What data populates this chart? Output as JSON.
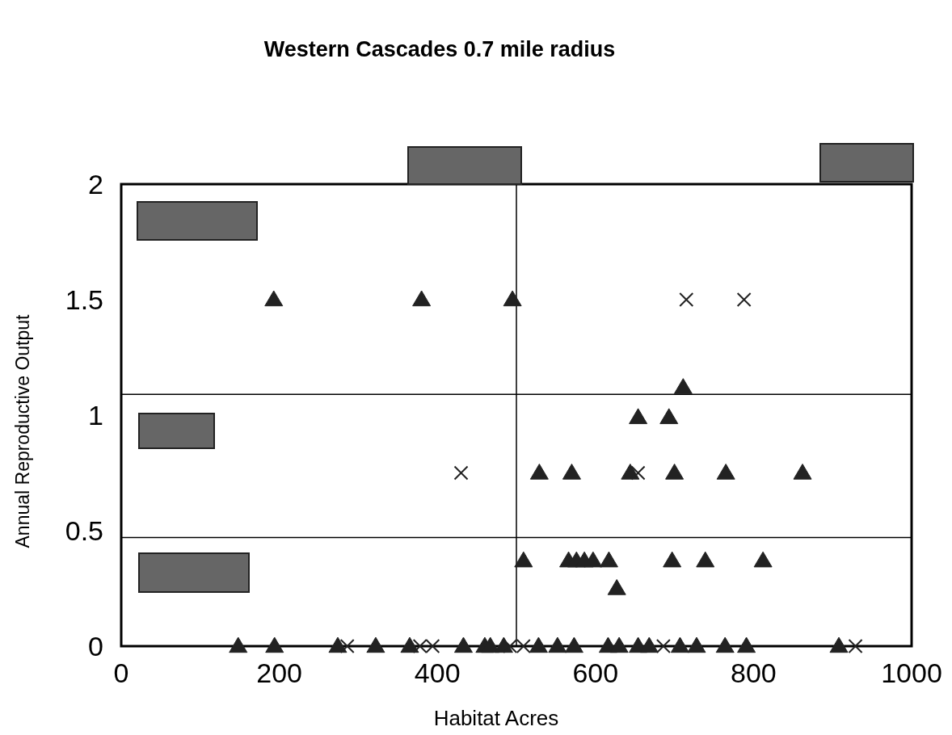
{
  "chart_data": {
    "type": "scatter",
    "title": "Western Cascades 0.7 mile radius",
    "xlabel": "Habitat Acres",
    "ylabel": "Annual Reproductive Output",
    "xlim": [
      0,
      1000
    ],
    "xticks": [
      0,
      200,
      400,
      600,
      800,
      1000
    ],
    "ylim": [
      0,
      2
    ],
    "yticks": [
      0,
      0.5,
      1,
      1.5,
      2
    ],
    "grid": false,
    "ref_lines": [
      {
        "axis": "x",
        "value": 500,
        "color": "#000000"
      },
      {
        "axis": "y",
        "value": 1.09,
        "color": "#000000"
      },
      {
        "axis": "y",
        "value": 0.47,
        "color": "#000000"
      }
    ],
    "series": [
      {
        "color": "#222222",
        "marker": "triangle",
        "x": [
          193,
          380,
          495,
          711,
          654,
          693,
          529,
          570,
          644,
          700,
          765,
          862,
          509,
          566,
          576,
          586,
          597,
          617,
          697,
          739,
          812,
          627,
          148,
          194,
          274,
          322,
          365,
          433,
          460,
          467,
          484,
          528,
          552,
          573,
          616,
          630,
          654,
          668,
          707,
          728,
          764,
          791,
          908
        ],
        "values": [
          1.5,
          1.5,
          1.5,
          1.12,
          0.99,
          0.99,
          0.75,
          0.75,
          0.75,
          0.75,
          0.75,
          0.75,
          0.37,
          0.37,
          0.37,
          0.37,
          0.37,
          0.37,
          0.37,
          0.37,
          0.37,
          0.25,
          0,
          0,
          0,
          0,
          0,
          0,
          0,
          0,
          0,
          0,
          0,
          0,
          0,
          0,
          0,
          0,
          0,
          0,
          0,
          0,
          0
        ]
      },
      {
        "color": "#222222",
        "marker": "cross",
        "x": [
          715,
          788,
          430,
          654,
          286,
          378,
          394,
          492,
          509,
          686,
          929
        ],
        "values": [
          1.5,
          1.5,
          0.75,
          0.75,
          0,
          0,
          0,
          0,
          0,
          0,
          0
        ]
      }
    ]
  }
}
